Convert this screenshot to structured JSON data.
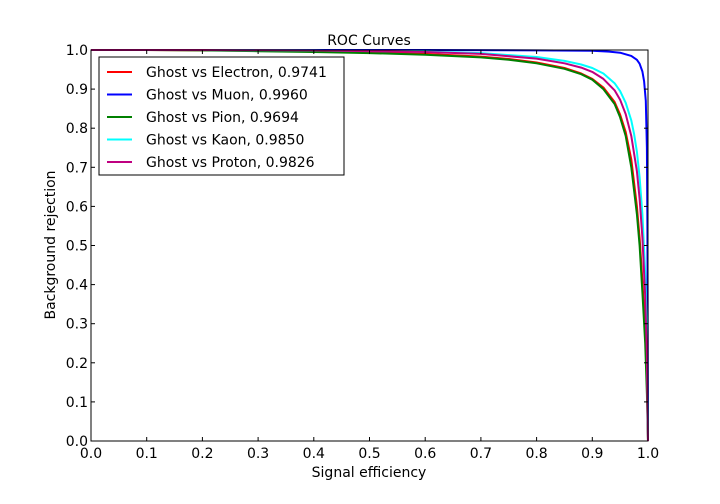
{
  "chart_data": {
    "type": "line",
    "title": "ROC Curves",
    "xlabel": "Signal efficiency",
    "ylabel": "Background rejection",
    "xlim": [
      0.0,
      1.0
    ],
    "ylim": [
      0.0,
      1.0
    ],
    "xticks": [
      "0.0",
      "0.1",
      "0.2",
      "0.3",
      "0.4",
      "0.5",
      "0.6",
      "0.7",
      "0.8",
      "0.9",
      "1.0"
    ],
    "yticks": [
      "0.0",
      "0.1",
      "0.2",
      "0.3",
      "0.4",
      "0.5",
      "0.6",
      "0.7",
      "0.8",
      "0.9",
      "1.0"
    ],
    "grid": false,
    "legend_position": "upper-left",
    "series": [
      {
        "name": "Ghost vs Electron, 0.9741",
        "color": "#ff0000",
        "x": [
          0.0,
          0.1,
          0.2,
          0.3,
          0.4,
          0.5,
          0.6,
          0.7,
          0.75,
          0.8,
          0.85,
          0.88,
          0.9,
          0.92,
          0.94,
          0.95,
          0.96,
          0.97,
          0.98,
          0.985,
          0.99,
          0.995,
          0.998,
          1.0
        ],
        "y": [
          1.0,
          1.0,
          0.999,
          0.998,
          0.996,
          0.993,
          0.99,
          0.983,
          0.977,
          0.968,
          0.954,
          0.94,
          0.926,
          0.904,
          0.867,
          0.835,
          0.79,
          0.72,
          0.6,
          0.52,
          0.41,
          0.28,
          0.15,
          0.0
        ]
      },
      {
        "name": "Ghost vs Muon, 0.9960",
        "color": "#0000ff",
        "x": [
          0.0,
          0.2,
          0.4,
          0.6,
          0.8,
          0.9,
          0.93,
          0.95,
          0.97,
          0.98,
          0.985,
          0.99,
          0.993,
          0.996,
          0.998,
          0.999,
          1.0
        ],
        "y": [
          1.0,
          1.0,
          1.0,
          1.0,
          0.999,
          0.998,
          0.996,
          0.993,
          0.985,
          0.975,
          0.965,
          0.945,
          0.92,
          0.87,
          0.75,
          0.55,
          0.0
        ]
      },
      {
        "name": "Ghost vs Pion, 0.9694",
        "color": "#008000",
        "x": [
          0.0,
          0.1,
          0.2,
          0.3,
          0.4,
          0.5,
          0.6,
          0.7,
          0.75,
          0.8,
          0.85,
          0.88,
          0.9,
          0.92,
          0.94,
          0.95,
          0.96,
          0.97,
          0.98,
          0.985,
          0.99,
          0.995,
          0.998,
          1.0
        ],
        "y": [
          1.0,
          1.0,
          0.999,
          0.997,
          0.995,
          0.992,
          0.988,
          0.981,
          0.975,
          0.966,
          0.952,
          0.938,
          0.924,
          0.9,
          0.862,
          0.828,
          0.78,
          0.7,
          0.58,
          0.5,
          0.38,
          0.25,
          0.12,
          0.0
        ]
      },
      {
        "name": "Ghost vs Kaon, 0.9850",
        "color": "#00ffff",
        "x": [
          0.0,
          0.2,
          0.4,
          0.6,
          0.7,
          0.8,
          0.85,
          0.88,
          0.9,
          0.92,
          0.94,
          0.95,
          0.96,
          0.97,
          0.975,
          0.98,
          0.985,
          0.99,
          0.995,
          0.998,
          1.0
        ],
        "y": [
          1.0,
          1.0,
          0.999,
          0.996,
          0.992,
          0.982,
          0.972,
          0.963,
          0.954,
          0.94,
          0.915,
          0.895,
          0.865,
          0.82,
          0.785,
          0.74,
          0.675,
          0.58,
          0.43,
          0.28,
          0.0
        ]
      },
      {
        "name": "Ghost vs Proton, 0.9826",
        "color": "#bf0080",
        "x": [
          0.0,
          0.2,
          0.4,
          0.6,
          0.7,
          0.8,
          0.85,
          0.88,
          0.9,
          0.92,
          0.94,
          0.95,
          0.96,
          0.97,
          0.98,
          0.985,
          0.99,
          0.995,
          0.998,
          1.0
        ],
        "y": [
          1.0,
          1.0,
          0.999,
          0.995,
          0.99,
          0.978,
          0.966,
          0.955,
          0.944,
          0.926,
          0.897,
          0.873,
          0.836,
          0.78,
          0.69,
          0.62,
          0.52,
          0.37,
          0.22,
          0.0
        ]
      }
    ]
  }
}
